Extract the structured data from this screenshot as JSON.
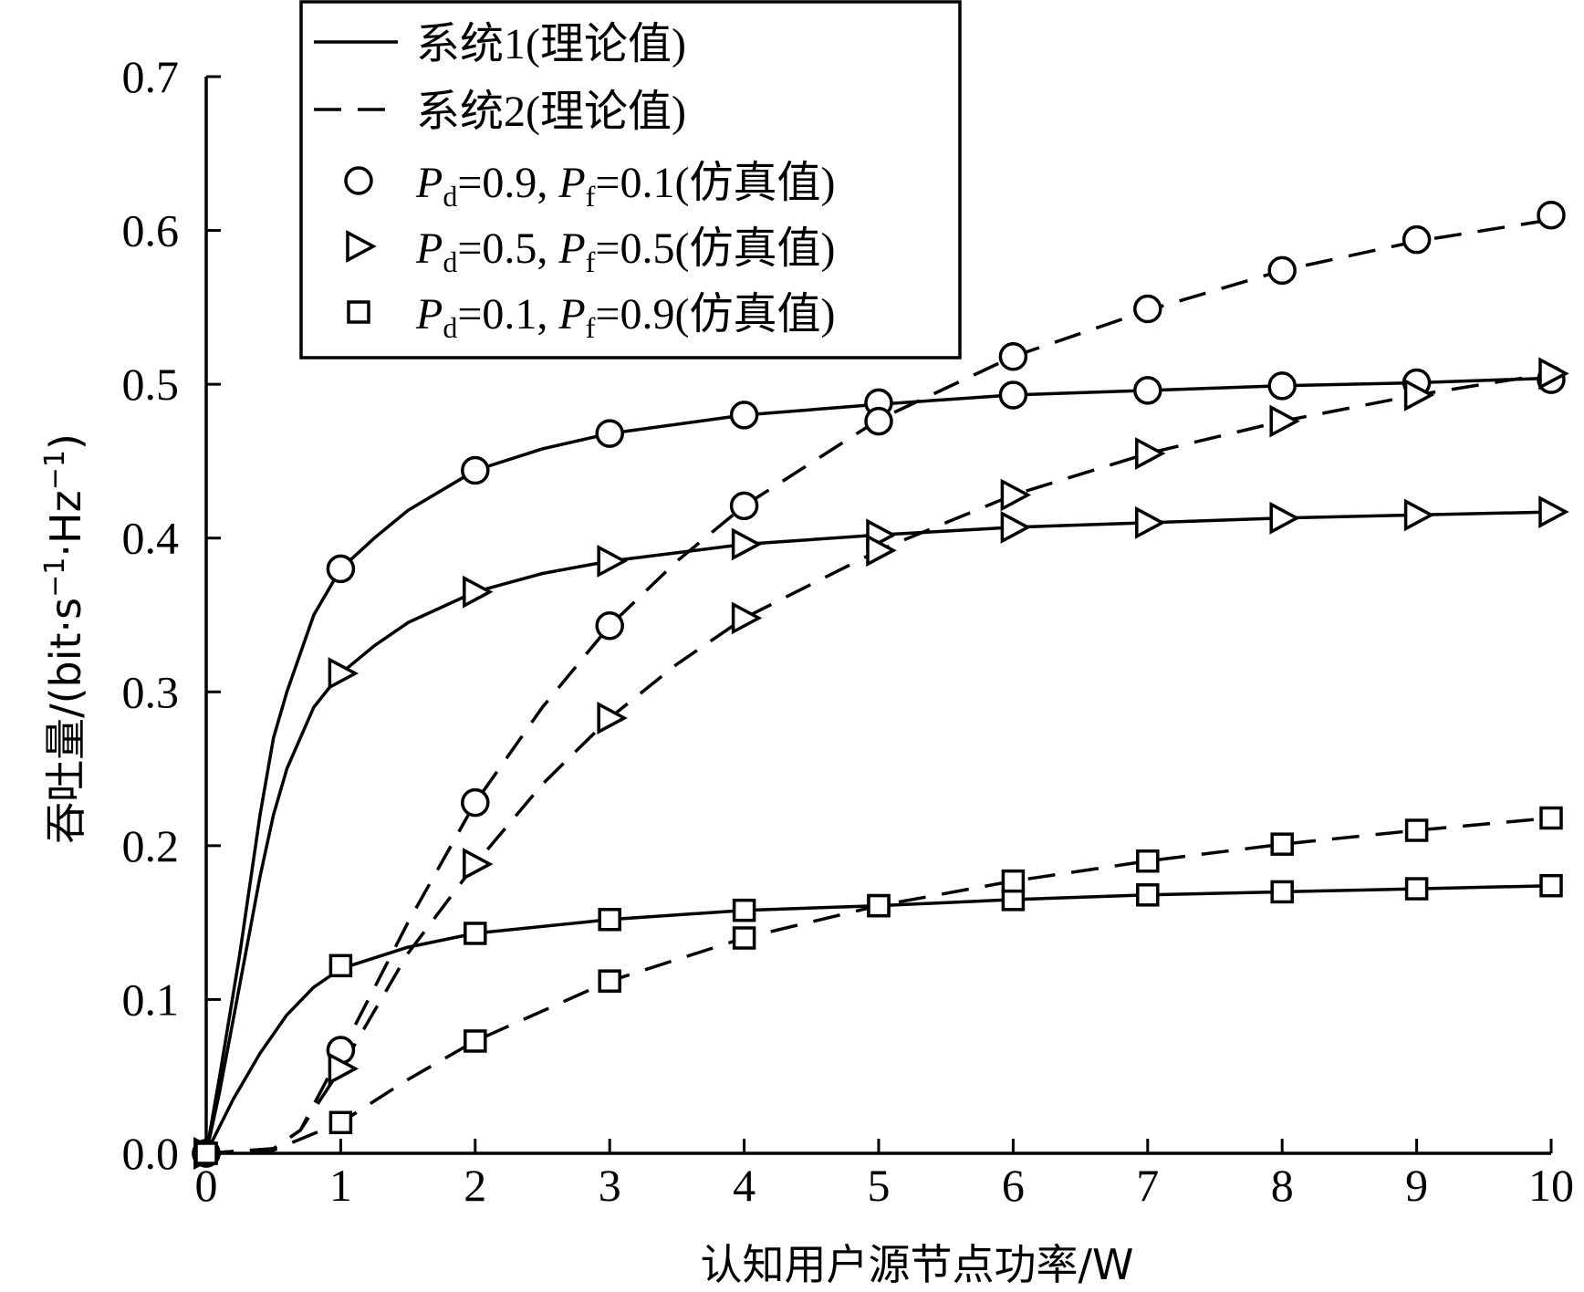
{
  "chart_data": {
    "type": "line",
    "xlabel": "认知用户源节点功率/W",
    "ylabel_prefix": "吞吐量/(bit·s",
    "ylabel_exp1": "−1",
    "ylabel_mid": "·Hz",
    "ylabel_exp2": "−1",
    "ylabel_suffix": ")",
    "xlim": [
      0,
      10
    ],
    "ylim": [
      0,
      0.7
    ],
    "xticks": [
      "0",
      "1",
      "2",
      "3",
      "4",
      "5",
      "6",
      "7",
      "8",
      "9",
      "10"
    ],
    "yticks": [
      "0.0",
      "0.1",
      "0.2",
      "0.3",
      "0.4",
      "0.5",
      "0.6",
      "0.7"
    ],
    "legend": {
      "placement": "top-left",
      "line_items": [
        {
          "label": "系统1(理论值)",
          "style": "solid"
        },
        {
          "label": "系统2(理论值)",
          "style": "dashed"
        }
      ],
      "marker_items": [
        {
          "marker": "circle",
          "pd": "0.9",
          "pf": "0.1",
          "suffix": "(仿真值)"
        },
        {
          "marker": "triangle",
          "pd": "0.5",
          "pf": "0.5",
          "suffix": "(仿真值)"
        },
        {
          "marker": "square",
          "pd": "0.1",
          "pf": "0.9",
          "suffix": "(仿真值)"
        }
      ],
      "p_symbol": "P",
      "sub_d": "d",
      "sub_f": "f",
      "eq": "=",
      "sep": ", "
    },
    "series": [
      {
        "system": 1,
        "marker": "circle",
        "style": "solid",
        "curve": [
          [
            0,
            0
          ],
          [
            0.1,
            0.05
          ],
          [
            0.25,
            0.13
          ],
          [
            0.4,
            0.22
          ],
          [
            0.5,
            0.27
          ],
          [
            0.6,
            0.3
          ],
          [
            0.8,
            0.35
          ],
          [
            1,
            0.38
          ],
          [
            1.25,
            0.4
          ],
          [
            1.5,
            0.418
          ],
          [
            2,
            0.444
          ],
          [
            2.5,
            0.458
          ],
          [
            3,
            0.468
          ],
          [
            4,
            0.48
          ],
          [
            5,
            0.487
          ],
          [
            6,
            0.493
          ],
          [
            7,
            0.496
          ],
          [
            8,
            0.499
          ],
          [
            9,
            0.501
          ],
          [
            10,
            0.504
          ]
        ],
        "points": [
          [
            0,
            0
          ],
          [
            1,
            0.38
          ],
          [
            2,
            0.444
          ],
          [
            3,
            0.468
          ],
          [
            4,
            0.48
          ],
          [
            5,
            0.488
          ],
          [
            6,
            0.493
          ],
          [
            7,
            0.496
          ],
          [
            8,
            0.499
          ],
          [
            9,
            0.501
          ],
          [
            10,
            0.503
          ]
        ]
      },
      {
        "system": 1,
        "marker": "triangle",
        "style": "solid",
        "curve": [
          [
            0,
            0
          ],
          [
            0.1,
            0.04
          ],
          [
            0.25,
            0.11
          ],
          [
            0.4,
            0.18
          ],
          [
            0.5,
            0.22
          ],
          [
            0.6,
            0.25
          ],
          [
            0.8,
            0.29
          ],
          [
            1,
            0.312
          ],
          [
            1.25,
            0.33
          ],
          [
            1.5,
            0.345
          ],
          [
            2,
            0.365
          ],
          [
            2.5,
            0.377
          ],
          [
            3,
            0.385
          ],
          [
            4,
            0.396
          ],
          [
            5,
            0.402
          ],
          [
            6,
            0.407
          ],
          [
            7,
            0.41
          ],
          [
            8,
            0.413
          ],
          [
            9,
            0.415
          ],
          [
            10,
            0.417
          ]
        ],
        "points": [
          [
            0,
            0
          ],
          [
            1,
            0.312
          ],
          [
            2,
            0.365
          ],
          [
            3,
            0.385
          ],
          [
            4,
            0.396
          ],
          [
            5,
            0.402
          ],
          [
            6,
            0.407
          ],
          [
            7,
            0.41
          ],
          [
            8,
            0.413
          ],
          [
            9,
            0.415
          ],
          [
            10,
            0.417
          ]
        ]
      },
      {
        "system": 1,
        "marker": "square",
        "style": "solid",
        "curve": [
          [
            0,
            0
          ],
          [
            0.2,
            0.035
          ],
          [
            0.4,
            0.065
          ],
          [
            0.6,
            0.09
          ],
          [
            0.8,
            0.108
          ],
          [
            1,
            0.12
          ],
          [
            1.5,
            0.134
          ],
          [
            2,
            0.143
          ],
          [
            3,
            0.152
          ],
          [
            4,
            0.158
          ],
          [
            5,
            0.161
          ],
          [
            6,
            0.165
          ],
          [
            7,
            0.168
          ],
          [
            8,
            0.17
          ],
          [
            9,
            0.172
          ],
          [
            10,
            0.174
          ]
        ],
        "points": [
          [
            0,
            0
          ],
          [
            1,
            0.122
          ],
          [
            2,
            0.143
          ],
          [
            3,
            0.152
          ],
          [
            4,
            0.158
          ],
          [
            5,
            0.161
          ],
          [
            6,
            0.165
          ],
          [
            7,
            0.168
          ],
          [
            8,
            0.17
          ],
          [
            9,
            0.172
          ],
          [
            10,
            0.174
          ]
        ]
      },
      {
        "system": 2,
        "marker": "circle",
        "style": "dashed",
        "curve": [
          [
            0,
            0
          ],
          [
            0.5,
            0.003
          ],
          [
            0.7,
            0.015
          ],
          [
            1,
            0.065
          ],
          [
            1.5,
            0.15
          ],
          [
            2,
            0.228
          ],
          [
            2.5,
            0.29
          ],
          [
            3,
            0.343
          ],
          [
            3.5,
            0.385
          ],
          [
            4,
            0.421
          ],
          [
            5,
            0.477
          ],
          [
            6,
            0.518
          ],
          [
            7,
            0.548
          ],
          [
            8,
            0.574
          ],
          [
            9,
            0.593
          ],
          [
            10,
            0.607
          ]
        ],
        "points": [
          [
            0,
            0
          ],
          [
            1,
            0.067
          ],
          [
            2,
            0.228
          ],
          [
            3,
            0.343
          ],
          [
            4,
            0.421
          ],
          [
            5,
            0.476
          ],
          [
            6,
            0.518
          ],
          [
            7,
            0.549
          ],
          [
            8,
            0.574
          ],
          [
            9,
            0.594
          ],
          [
            10,
            0.61
          ]
        ]
      },
      {
        "system": 2,
        "marker": "triangle",
        "style": "dashed",
        "curve": [
          [
            0,
            0
          ],
          [
            0.5,
            0.003
          ],
          [
            0.7,
            0.015
          ],
          [
            1,
            0.055
          ],
          [
            1.5,
            0.13
          ],
          [
            2,
            0.188
          ],
          [
            2.5,
            0.24
          ],
          [
            3,
            0.283
          ],
          [
            3.5,
            0.318
          ],
          [
            4,
            0.348
          ],
          [
            5,
            0.392
          ],
          [
            6,
            0.428
          ],
          [
            7,
            0.455
          ],
          [
            8,
            0.476
          ],
          [
            9,
            0.493
          ],
          [
            10,
            0.507
          ]
        ],
        "points": [
          [
            0,
            0
          ],
          [
            1,
            0.055
          ],
          [
            2,
            0.188
          ],
          [
            3,
            0.283
          ],
          [
            4,
            0.348
          ],
          [
            5,
            0.392
          ],
          [
            6,
            0.428
          ],
          [
            7,
            0.455
          ],
          [
            8,
            0.476
          ],
          [
            9,
            0.493
          ],
          [
            10,
            0.507
          ]
        ]
      },
      {
        "system": 2,
        "marker": "square",
        "style": "dashed",
        "curve": [
          [
            0,
            0
          ],
          [
            0.5,
            0.002
          ],
          [
            1,
            0.02
          ],
          [
            1.5,
            0.048
          ],
          [
            2,
            0.073
          ],
          [
            3,
            0.112
          ],
          [
            4,
            0.14
          ],
          [
            5,
            0.161
          ],
          [
            6,
            0.177
          ],
          [
            7,
            0.19
          ],
          [
            8,
            0.201
          ],
          [
            9,
            0.21
          ],
          [
            10,
            0.218
          ]
        ],
        "points": [
          [
            0,
            0
          ],
          [
            1,
            0.02
          ],
          [
            2,
            0.073
          ],
          [
            3,
            0.112
          ],
          [
            4,
            0.14
          ],
          [
            5,
            0.161
          ],
          [
            6,
            0.177
          ],
          [
            7,
            0.19
          ],
          [
            8,
            0.201
          ],
          [
            9,
            0.21
          ],
          [
            10,
            0.218
          ]
        ]
      }
    ]
  }
}
